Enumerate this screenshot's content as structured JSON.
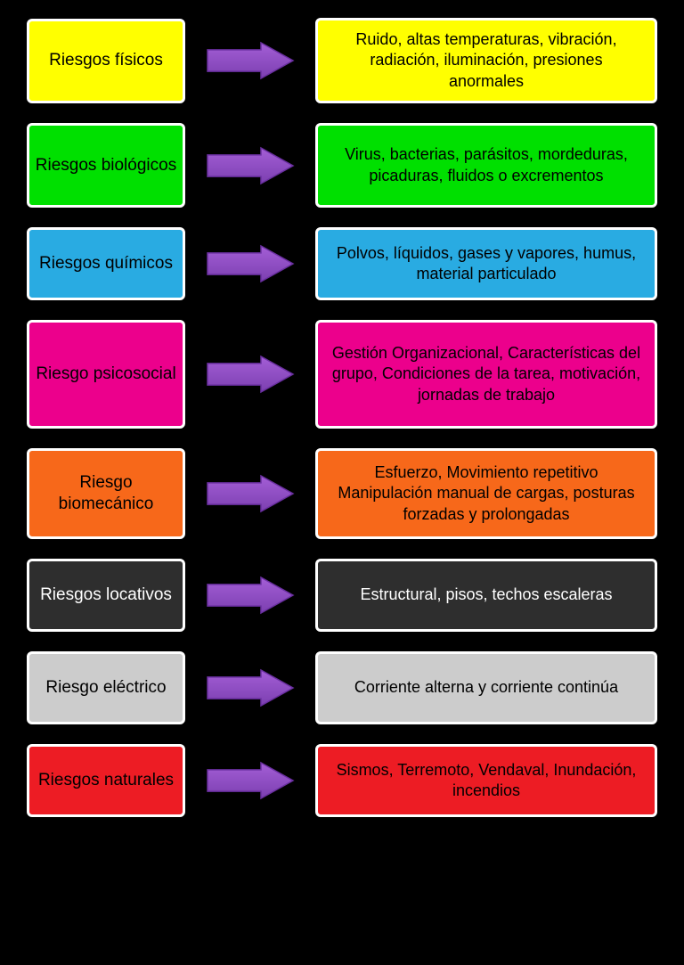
{
  "type": "infographic",
  "background_color": "#000000",
  "box_border_color": "#ffffff",
  "box_border_width": 3,
  "box_border_radius": 6,
  "arrow": {
    "fill_top": "#a45ed6",
    "fill_bottom": "#7b3fb0",
    "stroke": "#6a2fa0",
    "width": 100,
    "height": 44
  },
  "rows": [
    {
      "category": "Riesgos físicos",
      "description": "Ruido, altas temperaturas, vibración, radiación, iluminación, presiones anormales",
      "bg_color": "#ffff00",
      "text_color": "#000000",
      "desc_height": 95
    },
    {
      "category": "Riesgos biológicos",
      "description": "Virus, bacterias, parásitos, mordeduras, picaduras, fluidos o excrementos",
      "bg_color": "#00e000",
      "text_color": "#000000",
      "desc_height": 95
    },
    {
      "category": "Riesgos químicos",
      "description": "Polvos, líquidos, gases y vapores, humus, material particulado",
      "bg_color": "#29abe2",
      "text_color": "#000000",
      "desc_height": 82
    },
    {
      "category": "Riesgo psicosocial",
      "description": "Gestión Organizacional, Características del grupo, Condiciones de la tarea, motivación, jornadas de trabajo",
      "bg_color": "#ec008c",
      "text_color": "#000000",
      "desc_height": 122
    },
    {
      "category": "Riesgo biomecánico",
      "description": "Esfuerzo, Movimiento repetitivo Manipulación manual de cargas, posturas forzadas y prolongadas",
      "bg_color": "#f7681a",
      "text_color": "#000000",
      "desc_height": 102
    },
    {
      "category": "Riesgos locativos",
      "description": "Estructural, pisos, techos escaleras",
      "bg_color": "#2e2e2e",
      "text_color": "#ffffff",
      "desc_height": 82
    },
    {
      "category": "Riesgo eléctrico",
      "description": "Corriente alterna y corriente continúa",
      "bg_color": "#cccccc",
      "text_color": "#000000",
      "desc_height": 82
    },
    {
      "category": "Riesgos naturales",
      "description": "Sismos, Terremoto, Vendaval, Inundación, incendios",
      "bg_color": "#ed1c24",
      "text_color": "#000000",
      "desc_height": 82
    }
  ]
}
